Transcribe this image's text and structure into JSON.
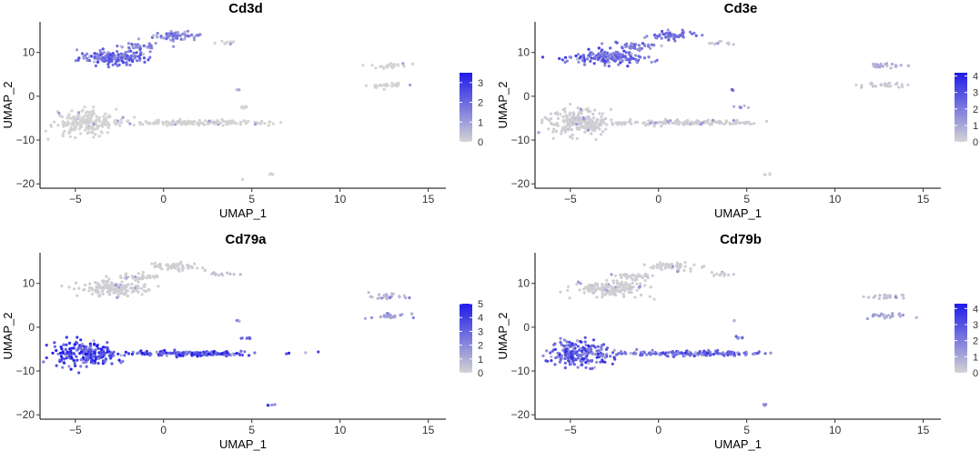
{
  "figure": {
    "background": "#ffffff",
    "low_color": "#d3d3d3",
    "high_color": "#1f1be8"
  },
  "chart_data": [
    {
      "type": "scatter",
      "title": "Cd3d",
      "xlabel": "UMAP_1",
      "ylabel": "UMAP_2",
      "xlim": [
        -7,
        16
      ],
      "ylim": [
        -21,
        17
      ],
      "xticks": [
        -5,
        0,
        5,
        10,
        15
      ],
      "yticks": [
        -20,
        -10,
        0,
        10
      ],
      "legend": {
        "position": "right",
        "min": 0,
        "max": 3.5,
        "ticks": [
          0,
          1,
          2,
          3
        ]
      },
      "grid": false,
      "clusters": [
        {
          "name": "T-left",
          "cx": -2.8,
          "cy": 8.8,
          "rx": 2.0,
          "ry": 1.6,
          "n": 160,
          "level": 0.55
        },
        {
          "name": "T-top",
          "cx": 0.8,
          "cy": 13.8,
          "rx": 1.3,
          "ry": 0.9,
          "n": 60,
          "level": 0.45
        },
        {
          "name": "T-bridge",
          "cx": -1.4,
          "cy": 11.5,
          "rx": 1.2,
          "ry": 0.8,
          "n": 40,
          "level": 0.45
        },
        {
          "name": "small-right",
          "cx": 3.5,
          "cy": 12.2,
          "rx": 0.8,
          "ry": 0.4,
          "n": 12,
          "level": 0.0
        },
        {
          "name": "B-main",
          "cx": -4.5,
          "cy": -6.0,
          "rx": 1.8,
          "ry": 3.0,
          "n": 200,
          "level": 0.0
        },
        {
          "name": "B-tail",
          "cx": 1.5,
          "cy": -6.0,
          "rx": 4.4,
          "ry": 0.6,
          "n": 160,
          "level": 0.0
        },
        {
          "name": "right-a",
          "cx": 12.8,
          "cy": 7.0,
          "rx": 1.0,
          "ry": 0.6,
          "n": 25,
          "level": 0.0
        },
        {
          "name": "right-b",
          "cx": 12.8,
          "cy": 2.5,
          "rx": 1.3,
          "ry": 0.6,
          "n": 25,
          "level": 0.0
        },
        {
          "name": "dot-1",
          "cx": 4.2,
          "cy": 1.5,
          "rx": 0.1,
          "ry": 0.2,
          "n": 3,
          "level": 0.3
        },
        {
          "name": "dot-2",
          "cx": 4.6,
          "cy": -2.5,
          "rx": 0.4,
          "ry": 0.3,
          "n": 6,
          "level": 0.0
        },
        {
          "name": "dot-3",
          "cx": 6.1,
          "cy": -17.8,
          "rx": 0.3,
          "ry": 0.2,
          "n": 4,
          "level": 0.0
        },
        {
          "name": "dot-4",
          "cx": 4.5,
          "cy": -19.0,
          "rx": 0.05,
          "ry": 0.1,
          "n": 1,
          "level": 0.0
        }
      ]
    },
    {
      "type": "scatter",
      "title": "Cd3e",
      "xlabel": "UMAP_1",
      "ylabel": "UMAP_2",
      "xlim": [
        -7,
        16
      ],
      "ylim": [
        -21,
        17
      ],
      "xticks": [
        -5,
        0,
        5,
        10,
        15
      ],
      "yticks": [
        -20,
        -10,
        0,
        10
      ],
      "legend": {
        "position": "right",
        "min": 0,
        "max": 4.2,
        "ticks": [
          0,
          1,
          2,
          3,
          4
        ]
      },
      "grid": false,
      "clusters": [
        {
          "name": "T-left",
          "cx": -2.8,
          "cy": 8.8,
          "rx": 2.0,
          "ry": 1.6,
          "n": 160,
          "level": 0.6
        },
        {
          "name": "T-top",
          "cx": 0.8,
          "cy": 13.8,
          "rx": 1.3,
          "ry": 0.9,
          "n": 60,
          "level": 0.5
        },
        {
          "name": "T-bridge",
          "cx": -1.4,
          "cy": 11.5,
          "rx": 1.2,
          "ry": 0.8,
          "n": 40,
          "level": 0.5
        },
        {
          "name": "small-right",
          "cx": 3.5,
          "cy": 12.2,
          "rx": 0.8,
          "ry": 0.4,
          "n": 12,
          "level": 0.05
        },
        {
          "name": "B-main",
          "cx": -4.5,
          "cy": -6.0,
          "rx": 1.8,
          "ry": 3.0,
          "n": 200,
          "level": 0.03
        },
        {
          "name": "B-tail",
          "cx": 1.5,
          "cy": -6.0,
          "rx": 4.4,
          "ry": 0.6,
          "n": 160,
          "level": 0.03
        },
        {
          "name": "right-a",
          "cx": 12.8,
          "cy": 7.0,
          "rx": 1.0,
          "ry": 0.6,
          "n": 25,
          "level": 0.2
        },
        {
          "name": "right-b",
          "cx": 12.8,
          "cy": 2.5,
          "rx": 1.3,
          "ry": 0.6,
          "n": 25,
          "level": 0.05
        },
        {
          "name": "dot-1",
          "cx": 4.2,
          "cy": 1.5,
          "rx": 0.1,
          "ry": 0.2,
          "n": 3,
          "level": 0.4
        },
        {
          "name": "dot-2",
          "cx": 4.6,
          "cy": -2.5,
          "rx": 0.4,
          "ry": 0.3,
          "n": 6,
          "level": 0.2
        },
        {
          "name": "dot-3",
          "cx": 6.1,
          "cy": -17.8,
          "rx": 0.3,
          "ry": 0.2,
          "n": 4,
          "level": 0.0
        }
      ]
    },
    {
      "type": "scatter",
      "title": "Cd79a",
      "xlabel": "UMAP_1",
      "ylabel": "UMAP_2",
      "xlim": [
        -7,
        16
      ],
      "ylim": [
        -21,
        17
      ],
      "xticks": [
        -5,
        0,
        5,
        10,
        15
      ],
      "yticks": [
        -20,
        -10,
        0,
        10
      ],
      "legend": {
        "position": "right",
        "min": 0,
        "max": 5,
        "ticks": [
          0,
          1,
          2,
          3,
          4,
          5
        ]
      },
      "grid": false,
      "clusters": [
        {
          "name": "T-left",
          "cx": -2.8,
          "cy": 8.8,
          "rx": 2.0,
          "ry": 1.6,
          "n": 160,
          "level": 0.02
        },
        {
          "name": "T-top",
          "cx": 0.8,
          "cy": 13.8,
          "rx": 1.3,
          "ry": 0.9,
          "n": 60,
          "level": 0.02
        },
        {
          "name": "T-bridge",
          "cx": -1.4,
          "cy": 11.5,
          "rx": 1.2,
          "ry": 0.8,
          "n": 40,
          "level": 0.02
        },
        {
          "name": "small-right",
          "cx": 3.5,
          "cy": 12.2,
          "rx": 0.8,
          "ry": 0.4,
          "n": 12,
          "level": 0.1
        },
        {
          "name": "B-main",
          "cx": -4.5,
          "cy": -6.0,
          "rx": 1.8,
          "ry": 3.0,
          "n": 200,
          "level": 0.8
        },
        {
          "name": "B-tail",
          "cx": 1.5,
          "cy": -6.0,
          "rx": 4.4,
          "ry": 0.6,
          "n": 160,
          "level": 0.75
        },
        {
          "name": "right-a",
          "cx": 12.8,
          "cy": 7.0,
          "rx": 1.0,
          "ry": 0.6,
          "n": 25,
          "level": 0.15
        },
        {
          "name": "right-b",
          "cx": 12.8,
          "cy": 2.5,
          "rx": 1.3,
          "ry": 0.6,
          "n": 25,
          "level": 0.3
        },
        {
          "name": "dot-1",
          "cx": 4.2,
          "cy": 1.5,
          "rx": 0.1,
          "ry": 0.2,
          "n": 3,
          "level": 0.2
        },
        {
          "name": "dot-2",
          "cx": 4.6,
          "cy": -2.5,
          "rx": 0.4,
          "ry": 0.3,
          "n": 6,
          "level": 0.7
        },
        {
          "name": "dot-3",
          "cx": 6.1,
          "cy": -17.8,
          "rx": 0.3,
          "ry": 0.2,
          "n": 4,
          "level": 0.6
        }
      ]
    },
    {
      "type": "scatter",
      "title": "Cd79b",
      "xlabel": "UMAP_1",
      "ylabel": "UMAP_2",
      "xlim": [
        -7,
        16
      ],
      "ylim": [
        -21,
        17
      ],
      "xticks": [
        -5,
        0,
        5,
        10,
        15
      ],
      "yticks": [
        -20,
        -10,
        0,
        10
      ],
      "legend": {
        "position": "right",
        "min": 0,
        "max": 4.3,
        "ticks": [
          0,
          1,
          2,
          3,
          4
        ]
      },
      "grid": false,
      "clusters": [
        {
          "name": "T-left",
          "cx": -2.8,
          "cy": 8.8,
          "rx": 2.0,
          "ry": 1.6,
          "n": 160,
          "level": 0.02
        },
        {
          "name": "T-top",
          "cx": 0.8,
          "cy": 13.8,
          "rx": 1.3,
          "ry": 0.9,
          "n": 60,
          "level": 0.02
        },
        {
          "name": "T-bridge",
          "cx": -1.4,
          "cy": 11.5,
          "rx": 1.2,
          "ry": 0.8,
          "n": 40,
          "level": 0.02
        },
        {
          "name": "small-right",
          "cx": 3.5,
          "cy": 12.2,
          "rx": 0.8,
          "ry": 0.4,
          "n": 12,
          "level": 0.05
        },
        {
          "name": "B-main",
          "cx": -4.5,
          "cy": -6.0,
          "rx": 1.8,
          "ry": 3.0,
          "n": 200,
          "level": 0.65
        },
        {
          "name": "B-tail",
          "cx": 1.5,
          "cy": -6.0,
          "rx": 4.4,
          "ry": 0.6,
          "n": 160,
          "level": 0.6
        },
        {
          "name": "right-a",
          "cx": 12.8,
          "cy": 7.0,
          "rx": 1.0,
          "ry": 0.6,
          "n": 25,
          "level": 0.1
        },
        {
          "name": "right-b",
          "cx": 12.8,
          "cy": 2.5,
          "rx": 1.3,
          "ry": 0.6,
          "n": 25,
          "level": 0.25
        },
        {
          "name": "dot-1",
          "cx": 4.2,
          "cy": 1.5,
          "rx": 0.1,
          "ry": 0.2,
          "n": 3,
          "level": 0.2
        },
        {
          "name": "dot-2",
          "cx": 4.6,
          "cy": -2.5,
          "rx": 0.4,
          "ry": 0.3,
          "n": 6,
          "level": 0.5
        },
        {
          "name": "dot-3",
          "cx": 6.1,
          "cy": -17.8,
          "rx": 0.3,
          "ry": 0.2,
          "n": 4,
          "level": 0.4
        }
      ]
    }
  ]
}
